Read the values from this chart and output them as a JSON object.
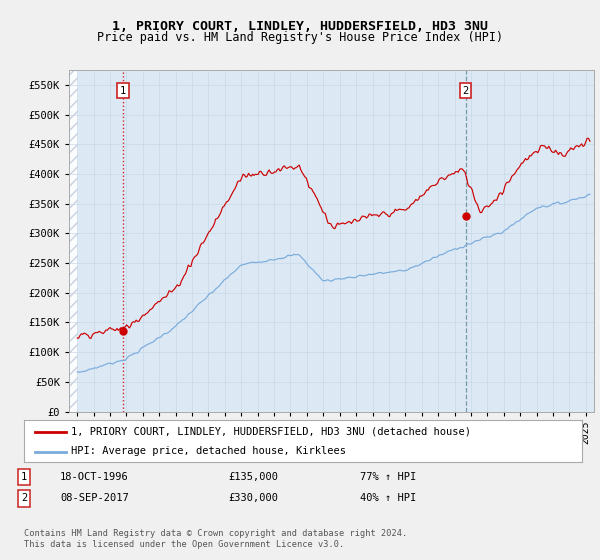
{
  "title": "1, PRIORY COURT, LINDLEY, HUDDERSFIELD, HD3 3NU",
  "subtitle": "Price paid vs. HM Land Registry's House Price Index (HPI)",
  "ylabel_ticks": [
    "£0",
    "£50K",
    "£100K",
    "£150K",
    "£200K",
    "£250K",
    "£300K",
    "£350K",
    "£400K",
    "£450K",
    "£500K",
    "£550K"
  ],
  "ytick_values": [
    0,
    50000,
    100000,
    150000,
    200000,
    250000,
    300000,
    350000,
    400000,
    450000,
    500000,
    550000
  ],
  "ylim": [
    0,
    575000
  ],
  "xlim_start": 1993.5,
  "xlim_end": 2025.5,
  "hpi_color": "#7aabdc",
  "price_color": "#cc0000",
  "sale1_date": 1996.79,
  "sale1_price": 135000,
  "sale2_date": 2017.67,
  "sale2_price": 330000,
  "sale1_label": "1",
  "sale2_label": "2",
  "legend_line1": "1, PRIORY COURT, LINDLEY, HUDDERSFIELD, HD3 3NU (detached house)",
  "legend_line2": "HPI: Average price, detached house, Kirklees",
  "info1_num": "1",
  "info1_date": "18-OCT-1996",
  "info1_price": "£135,000",
  "info1_hpi": "77% ↑ HPI",
  "info2_num": "2",
  "info2_date": "08-SEP-2017",
  "info2_price": "£330,000",
  "info2_hpi": "40% ↑ HPI",
  "footnote": "Contains HM Land Registry data © Crown copyright and database right 2024.\nThis data is licensed under the Open Government Licence v3.0.",
  "bg_color": "#f0f0f0",
  "plot_bg_color": "#dce9f5",
  "hatch_color": "#c0ccdc"
}
